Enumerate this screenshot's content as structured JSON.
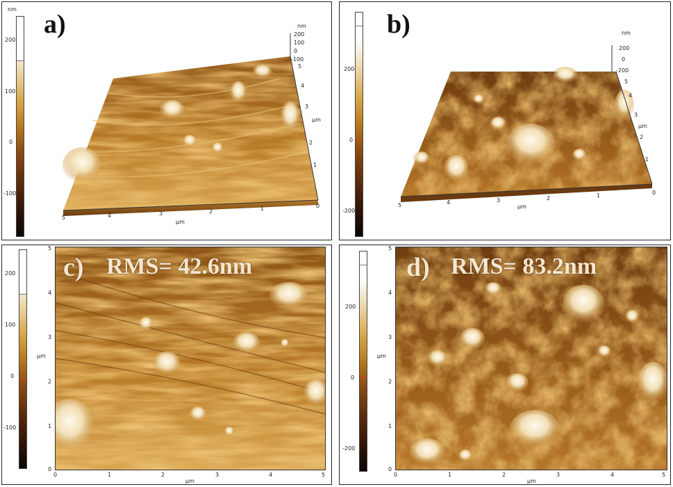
{
  "panels": {
    "a": {
      "label": "a)",
      "colorbar_unit": "nm",
      "colorbar_ticks": [
        "200",
        "100",
        "0",
        "-100"
      ],
      "z_unit": "nm",
      "z_ticks": [
        "200",
        "100",
        "0",
        "-100"
      ],
      "x_ticks": [
        "5",
        "4",
        "3",
        "2",
        "1",
        "0"
      ],
      "x_unit": "μm",
      "y_ticks": [
        "5",
        "4",
        "3",
        "2",
        "1"
      ],
      "y_unit": "μm"
    },
    "b": {
      "label": "b)",
      "colorbar_unit": "nm",
      "colorbar_ticks": [
        "200",
        "0",
        "-200"
      ],
      "z_unit": "nm",
      "z_ticks": [
        "200",
        "0",
        "-200"
      ],
      "x_ticks": [
        "5",
        "4",
        "3",
        "2",
        "1",
        "0"
      ],
      "x_unit": "μm",
      "y_ticks": [
        "5",
        "4",
        "3",
        "2",
        "1"
      ],
      "y_unit": "μm"
    },
    "c": {
      "label": "c)",
      "rms": "RMS= 42.6nm",
      "colorbar_ticks": [
        "200",
        "100",
        "0",
        "-100"
      ],
      "y_ticks": [
        "5",
        "4",
        "3",
        "2",
        "1",
        "0"
      ],
      "y_unit": "μm",
      "x_ticks": [
        "0",
        "1",
        "2",
        "3",
        "4",
        "5"
      ],
      "x_unit": "μm"
    },
    "d": {
      "label": "d)",
      "rms": "RMS= 83.2nm",
      "colorbar_ticks": [
        "200",
        "0",
        "-200"
      ],
      "y_ticks": [
        "5",
        "4",
        "3",
        "2",
        "1",
        "0"
      ],
      "y_unit": "μm",
      "x_ticks": [
        "0",
        "1",
        "2",
        "3",
        "4",
        "5"
      ],
      "x_unit": "μm"
    }
  },
  "colors": {
    "surface_dark": "#5a2e0c",
    "surface_mid": "#b07224",
    "surface_light": "#e0b060",
    "peak": "#fff4de"
  }
}
